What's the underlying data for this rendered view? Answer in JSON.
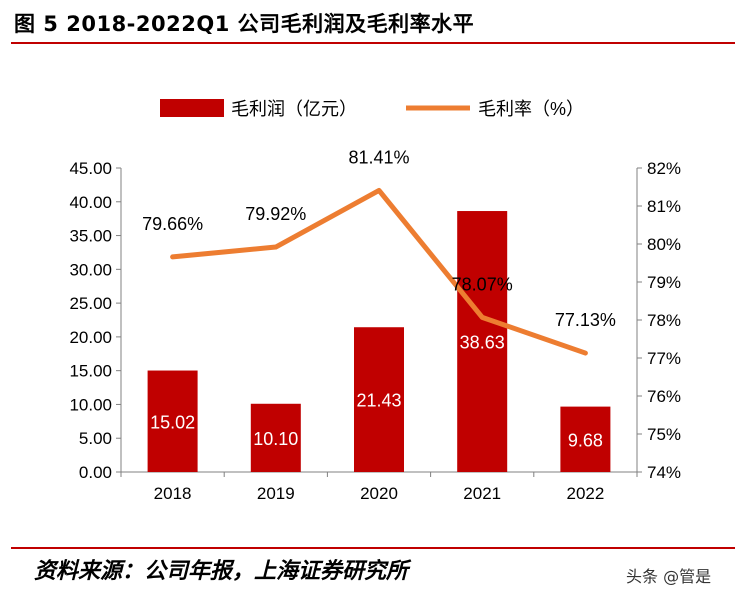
{
  "figure": {
    "title": "图 5 2018-2022Q1 公司毛利润及毛利率水平",
    "source": "资料来源：公司年报，上海证券研究所",
    "watermark": "头条 @管是"
  },
  "chart_data": {
    "type": "bar",
    "categories": [
      "2018",
      "2019",
      "2020",
      "2021",
      "2022"
    ],
    "series": [
      {
        "name": "毛利润（亿元）",
        "type": "bar",
        "axis": "left",
        "values": [
          15.02,
          10.1,
          21.43,
          38.63,
          9.68
        ],
        "labels": [
          "15.02",
          "10.10",
          "21.43",
          "38.63",
          "9.68"
        ],
        "color": "#c00000"
      },
      {
        "name": "毛利率（%）",
        "type": "line",
        "axis": "right",
        "values": [
          79.66,
          79.92,
          81.41,
          78.07,
          77.13
        ],
        "labels": [
          "79.66%",
          "79.92%",
          "81.41%",
          "78.07%",
          "77.13%"
        ],
        "color": "#ed7d31"
      }
    ],
    "y_left": {
      "lim": [
        0,
        45
      ],
      "ticks": [
        "0.00",
        "5.00",
        "10.00",
        "15.00",
        "20.00",
        "25.00",
        "30.00",
        "35.00",
        "40.00",
        "45.00"
      ]
    },
    "y_right": {
      "lim": [
        74,
        82
      ],
      "ticks": [
        "74%",
        "75%",
        "76%",
        "77%",
        "78%",
        "79%",
        "80%",
        "81%",
        "82%"
      ]
    },
    "grid": false,
    "legend": "top-center"
  }
}
